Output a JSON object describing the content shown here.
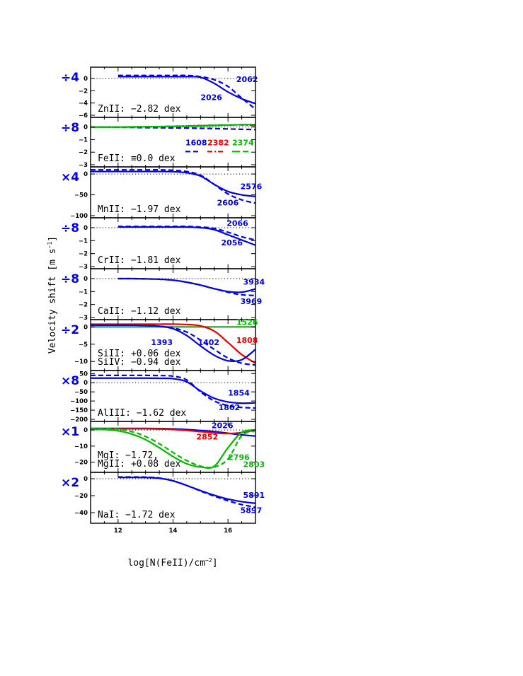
{
  "chart_data": {
    "type": "line",
    "x": [
      11,
      11.5,
      12,
      12.5,
      13,
      13.5,
      14,
      14.5,
      15,
      15.5,
      16,
      16.5,
      17
    ],
    "xlabel": "log[N(FeII)/cm",
    "xlabel_sup": "−2",
    "xlabel_end": "]",
    "xticks": [
      "12",
      "14",
      "16"
    ],
    "xlim": [
      11,
      17
    ],
    "ylabel": "Velocity shift  [m s",
    "ylabel_sup": "−1",
    "ylabel_end": "]",
    "panels": [
      {
        "id": "znii",
        "factor": "÷4",
        "factor_color": "#0000ee",
        "label_lines": [
          "ZnII: −2.82 dex"
        ],
        "ylim": [
          -6,
          1.5
        ],
        "yticks": [
          {
            "v": 0,
            "t": "0"
          },
          {
            "v": -2,
            "t": "−2"
          },
          {
            "v": -4,
            "t": "−4"
          },
          {
            "v": -6,
            "t": "−6"
          }
        ],
        "series": [
          {
            "name": "2062",
            "color": "#0000ee",
            "dash": "solid",
            "values": [
              null,
              null,
              0.3,
              0.3,
              0.3,
              0.3,
              0.3,
              0.3,
              0.2,
              -0.8,
              -2.2,
              -3.3,
              -4.1
            ]
          },
          {
            "name": "2026",
            "color": "#0000ee",
            "dash": "dashed",
            "values": [
              null,
              null,
              0.5,
              0.5,
              0.5,
              0.5,
              0.5,
              0.5,
              0.3,
              -0.2,
              -1.3,
              -3.2,
              -5.0
            ]
          }
        ],
        "labels": [
          {
            "text": "2062",
            "color": "#0000ee",
            "x": 16.3,
            "y": -0.6
          },
          {
            "text": "2026",
            "color": "#0000ee",
            "x": 15.0,
            "y": -3.5
          }
        ]
      },
      {
        "id": "feii",
        "factor": "÷8",
        "factor_color": "#0000ee",
        "label_lines": [
          "FeII: ≡0.0 dex"
        ],
        "ylim": [
          -3,
          0.6
        ],
        "yticks": [
          {
            "v": 0,
            "t": "0"
          },
          {
            "v": -1,
            "t": "−1"
          },
          {
            "v": -2,
            "t": "−2"
          },
          {
            "v": -3,
            "t": "−3"
          }
        ],
        "series": [
          {
            "name": "1608",
            "color": "#0000ee",
            "dash": "dashed",
            "values": [
              0,
              0,
              -0.02,
              -0.03,
              -0.05,
              -0.06,
              -0.07,
              -0.08,
              -0.1,
              -0.12,
              -0.15,
              -0.18,
              -0.2
            ]
          },
          {
            "name": "2382",
            "color": "#ee0000",
            "dash": "dashdot",
            "values": [
              0,
              0,
              0,
              0.01,
              0.02,
              0.04,
              0.06,
              0.09,
              0.12,
              0.15,
              0.17,
              0.17,
              0.12
            ]
          },
          {
            "name": "2374",
            "color": "#00bb00",
            "dash": "longdash",
            "values": [
              0,
              0,
              0,
              0.01,
              0.02,
              0.03,
              0.05,
              0.07,
              0.1,
              0.13,
              0.16,
              0.19,
              0.2
            ]
          },
          {
            "name": "",
            "color": "#00bb00",
            "dash": "solid",
            "values": [
              0,
              0,
              0,
              0.01,
              0.02,
              0.03,
              0.05,
              0.07,
              0.1,
              0.13,
              0.16,
              0.19,
              0.2
            ]
          }
        ],
        "labels": [
          {
            "text": "1608",
            "color": "#0000ee",
            "x": 14.45,
            "y": -1.45
          },
          {
            "text": "2382",
            "color": "#ee0000",
            "x": 15.25,
            "y": -1.45
          },
          {
            "text": "2374",
            "color": "#00bb00",
            "x": 16.15,
            "y": -1.45
          }
        ],
        "legend_samples": [
          {
            "color": "#0000ee",
            "dash": "dashed",
            "x1": 14.45,
            "x2": 15.0,
            "y": -1.95
          },
          {
            "color": "#ee0000",
            "dash": "dashdot",
            "x1": 15.25,
            "x2": 15.85,
            "y": -1.95
          },
          {
            "color": "#00bb00",
            "dash": "longdash",
            "x1": 16.15,
            "x2": 16.75,
            "y": -1.95
          }
        ]
      },
      {
        "id": "mnii",
        "factor": "×4",
        "factor_color": "#0000ee",
        "label_lines": [
          "MnII: −1.97 dex"
        ],
        "ylim": [
          -100,
          12
        ],
        "yticks": [
          {
            "v": 0,
            "t": "0"
          },
          {
            "v": -50,
            "t": "−50"
          },
          {
            "v": -100,
            "t": "−100"
          }
        ],
        "series": [
          {
            "name": "2576",
            "color": "#0000ee",
            "dash": "solid",
            "values": [
              6,
              6,
              6,
              6,
              6,
              6,
              5.5,
              3,
              -5,
              -25,
              -42,
              -50,
              -54
            ]
          },
          {
            "name": "2606",
            "color": "#0000ee",
            "dash": "dashed",
            "values": [
              10,
              10,
              10,
              10,
              10,
              10,
              9,
              6,
              -3,
              -25,
              -48,
              -62,
              -70
            ]
          }
        ],
        "labels": [
          {
            "text": "2576",
            "color": "#0000ee",
            "x": 16.45,
            "y": -36
          },
          {
            "text": "2606",
            "color": "#0000ee",
            "x": 15.6,
            "y": -75
          }
        ]
      },
      {
        "id": "crii",
        "factor": "÷8",
        "factor_color": "#0000ee",
        "label_lines": [
          "CrII: −1.81 dex"
        ],
        "ylim": [
          -3,
          0.6
        ],
        "yticks": [
          {
            "v": 0,
            "t": "0"
          },
          {
            "v": -1,
            "t": "−1"
          },
          {
            "v": -2,
            "t": "−2"
          },
          {
            "v": -3,
            "t": "−3"
          }
        ],
        "series": [
          {
            "name": "2066",
            "color": "#0000ee",
            "dash": "dashed",
            "values": [
              null,
              null,
              0.1,
              0.1,
              0.1,
              0.1,
              0.1,
              0.1,
              0.05,
              -0.05,
              -0.35,
              -0.7,
              -0.95
            ]
          },
          {
            "name": "2056",
            "color": "#0000ee",
            "dash": "solid",
            "values": [
              null,
              null,
              0.05,
              0.05,
              0.05,
              0.05,
              0.05,
              0.05,
              0,
              -0.15,
              -0.55,
              -0.95,
              -1.35
            ]
          }
        ],
        "labels": [
          {
            "text": "2066",
            "color": "#0000ee",
            "x": 15.95,
            "y": 0.15
          },
          {
            "text": "2056",
            "color": "#0000ee",
            "x": 15.75,
            "y": -1.35
          }
        ]
      },
      {
        "id": "caii",
        "factor": "÷8",
        "factor_color": "#0000ee",
        "label_lines": [
          "CaII: −1.12 dex"
        ],
        "ylim": [
          -3,
          0.6
        ],
        "yticks": [
          {
            "v": 0,
            "t": "0"
          },
          {
            "v": -1,
            "t": "−1"
          },
          {
            "v": -2,
            "t": "−2"
          },
          {
            "v": -3,
            "t": "−3"
          }
        ],
        "series": [
          {
            "name": "3934",
            "color": "#0000ee",
            "dash": "solid",
            "values": [
              null,
              null,
              0,
              0,
              -0.02,
              -0.05,
              -0.12,
              -0.28,
              -0.5,
              -0.78,
              -1.0,
              -1.05,
              -0.8
            ]
          },
          {
            "name": "3969",
            "color": "#0000ee",
            "dash": "dashed",
            "values": [
              null,
              null,
              0,
              0,
              -0.02,
              -0.05,
              -0.12,
              -0.28,
              -0.5,
              -0.78,
              -1.05,
              -1.25,
              -1.3
            ]
          }
        ],
        "labels": [
          {
            "text": "3934",
            "color": "#0000ee",
            "x": 16.55,
            "y": -0.45
          },
          {
            "text": "3969",
            "color": "#0000ee",
            "x": 16.45,
            "y": -1.95
          }
        ]
      },
      {
        "id": "siii",
        "factor": "÷2",
        "factor_color": "#0000ee",
        "label_lines": [
          "SiII: +0.06 dex",
          "SiIV: −0.94 dex"
        ],
        "ylim": [
          -12,
          1.5
        ],
        "yticks": [
          {
            "v": 0,
            "t": "0"
          },
          {
            "v": -5,
            "t": "−5"
          },
          {
            "v": -10,
            "t": "−10"
          }
        ],
        "series": [
          {
            "name": "1526",
            "color": "#00bb00",
            "dash": "solid",
            "values": [
              0,
              0,
              0,
              0,
              0,
              0,
              0,
              0,
              0,
              0,
              0,
              0,
              0
            ]
          },
          {
            "name": "1808",
            "color": "#ee0000",
            "dash": "solid",
            "values": [
              0.8,
              0.8,
              0.8,
              0.8,
              0.8,
              0.8,
              0.8,
              0.7,
              0.3,
              -1.2,
              -4.5,
              -8,
              -10.5
            ]
          },
          {
            "name": "1393",
            "color": "#0000ee",
            "dash": "solid",
            "values": [
              0.5,
              0.5,
              0.5,
              0.5,
              0.4,
              0.2,
              -0.5,
              -2.5,
              -5.5,
              -8.2,
              -9.8,
              -9.5,
              -6.5
            ]
          },
          {
            "name": "1402",
            "color": "#0000ee",
            "dash": "dashed",
            "values": [
              0.5,
              0.5,
              0.5,
              0.5,
              0.4,
              0.2,
              -0.3,
              -1.5,
              -3.8,
              -6.5,
              -9,
              -10.5,
              -11
            ]
          }
        ],
        "labels": [
          {
            "text": "1526",
            "color": "#00bb00",
            "x": 16.3,
            "y": 0.6
          },
          {
            "text": "1808",
            "color": "#ee0000",
            "x": 16.3,
            "y": -4.6
          },
          {
            "text": "1393",
            "color": "#0000ee",
            "x": 13.2,
            "y": -5.3
          },
          {
            "text": "1402",
            "color": "#0000ee",
            "x": 14.9,
            "y": -5.3
          }
        ]
      },
      {
        "id": "aliii",
        "factor": "×8",
        "factor_color": "#0000ee",
        "label_lines": [
          "AlIII: −1.62 dex"
        ],
        "ylim": [
          -200,
          55
        ],
        "yticks": [
          {
            "v": 50,
            "t": "50"
          },
          {
            "v": 0,
            "t": "0"
          },
          {
            "v": -50,
            "t": "−50"
          },
          {
            "v": -100,
            "t": "−100"
          },
          {
            "v": -150,
            "t": "−150"
          },
          {
            "v": -200,
            "t": "−200"
          }
        ],
        "series": [
          {
            "name": "1854",
            "color": "#0000ee",
            "dash": "solid",
            "values": [
              25,
              25,
              25,
              25,
              25,
              24,
              22,
              5,
              -45,
              -85,
              -105,
              -112,
              -110
            ]
          },
          {
            "name": "1862",
            "color": "#0000ee",
            "dash": "dashed",
            "values": [
              40,
              40,
              40,
              40,
              40,
              39,
              36,
              15,
              -50,
              -100,
              -125,
              -135,
              -138
            ]
          }
        ],
        "labels": [
          {
            "text": "1854",
            "color": "#0000ee",
            "x": 16.0,
            "y": -70
          },
          {
            "text": "1862",
            "color": "#0000ee",
            "x": 15.65,
            "y": -150
          }
        ]
      },
      {
        "id": "mgi",
        "factor": "×1",
        "factor_color": "#0000ee",
        "label_lines": [
          "MgI: −1.72,",
          "MgII: +0.08 dex"
        ],
        "ylim": [
          -25,
          4
        ],
        "yticks": [
          {
            "v": 0,
            "t": "0"
          },
          {
            "v": -10,
            "t": "−10"
          },
          {
            "v": -20,
            "t": "−20"
          }
        ],
        "series": [
          {
            "name": "2026",
            "color": "#0000ee",
            "dash": "solid",
            "values": [
              1,
              1,
              1,
              1,
              1,
              0.9,
              0.7,
              0.3,
              -0.3,
              -1,
              -2,
              -3,
              -3.8
            ]
          },
          {
            "name": "2852",
            "color": "#ee0000",
            "dash": "solid",
            "values": [
              0.8,
              0.8,
              0.8,
              0.8,
              0.8,
              0.6,
              0.3,
              -0.3,
              -1,
              -1.8,
              -2.2,
              -1.6,
              0
            ]
          },
          {
            "name": "2796",
            "color": "#00bb00",
            "dash": "solid",
            "values": [
              0.5,
              0.3,
              -0.5,
              -2.5,
              -6,
              -11,
              -16.5,
              -21,
              -23,
              -22.5,
              -11,
              -1.5,
              0
            ]
          },
          {
            "name": "2803",
            "color": "#00bb00",
            "dash": "dashed",
            "values": [
              1,
              1,
              0.5,
              -1,
              -4,
              -8.5,
              -14,
              -19,
              -22.5,
              -23,
              -18,
              -3.5,
              -0.5
            ]
          }
        ],
        "labels": [
          {
            "text": "2026",
            "color": "#0000ee",
            "x": 15.4,
            "y": 1.2
          },
          {
            "text": "2852",
            "color": "#ee0000",
            "x": 14.85,
            "y": -5.8
          },
          {
            "text": "2796",
            "color": "#00bb00",
            "x": 16.0,
            "y": -18.7
          },
          {
            "text": "2803",
            "color": "#00bb00",
            "x": 16.55,
            "y": -23
          }
        ]
      },
      {
        "id": "nai",
        "factor": "×2",
        "factor_color": "#0000ee",
        "label_lines": [
          "NaI: −1.72 dex"
        ],
        "ylim": [
          -50,
          5
        ],
        "yticks": [
          {
            "v": 0,
            "t": "0"
          },
          {
            "v": -20,
            "t": "−20"
          },
          {
            "v": -40,
            "t": "−40"
          }
        ],
        "series": [
          {
            "name": "5891",
            "color": "#0000ee",
            "dash": "solid",
            "values": [
              null,
              null,
              1.5,
              1.5,
              1.4,
              0.5,
              -2.5,
              -8,
              -14,
              -19.5,
              -24,
              -27,
              -29
            ]
          },
          {
            "name": "5897",
            "color": "#0000ee",
            "dash": "dashed",
            "values": [
              null,
              null,
              2,
              2,
              1.9,
              0.8,
              -2.5,
              -8,
              -14.5,
              -20.5,
              -26,
              -30.5,
              -33.5
            ]
          }
        ],
        "labels": [
          {
            "text": "5891",
            "color": "#0000ee",
            "x": 16.55,
            "y": -22.5
          },
          {
            "text": "5897",
            "color": "#0000ee",
            "x": 16.45,
            "y": -40.5
          }
        ]
      }
    ]
  }
}
